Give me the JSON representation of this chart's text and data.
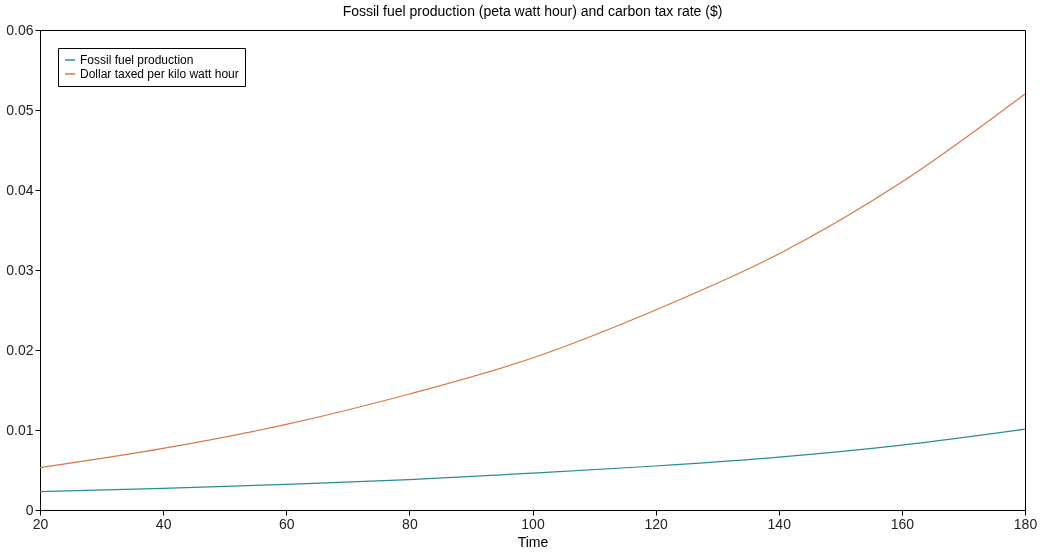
{
  "chart_data": {
    "type": "line",
    "title": "Fossil fuel production (peta watt hour) and carbon tax rate ($)",
    "xlabel": "Time",
    "x": [
      20,
      40,
      60,
      80,
      100,
      120,
      140,
      160,
      180
    ],
    "series": [
      {
        "name": "Fossil fuel production",
        "color": "#2a8c96",
        "values": [
          0.0023,
          0.0027,
          0.0032,
          0.0038,
          0.0046,
          0.0055,
          0.0066,
          0.0081,
          0.0101
        ]
      },
      {
        "name": "Dollar taxed per kilo watt hour",
        "color": "#d9774a",
        "values": [
          0.0053,
          0.0077,
          0.0107,
          0.0145,
          0.019,
          0.025,
          0.032,
          0.041,
          0.052
        ]
      }
    ],
    "xlim": [
      20,
      180
    ],
    "ylim": [
      0,
      0.06
    ],
    "xticks": [
      20,
      40,
      60,
      80,
      100,
      120,
      140,
      160,
      180
    ],
    "yticks": [
      0,
      0.01,
      0.02,
      0.03,
      0.04,
      0.05,
      0.06
    ],
    "grid": false,
    "legend": "top left",
    "marker": "none",
    "line_style": "solid"
  }
}
